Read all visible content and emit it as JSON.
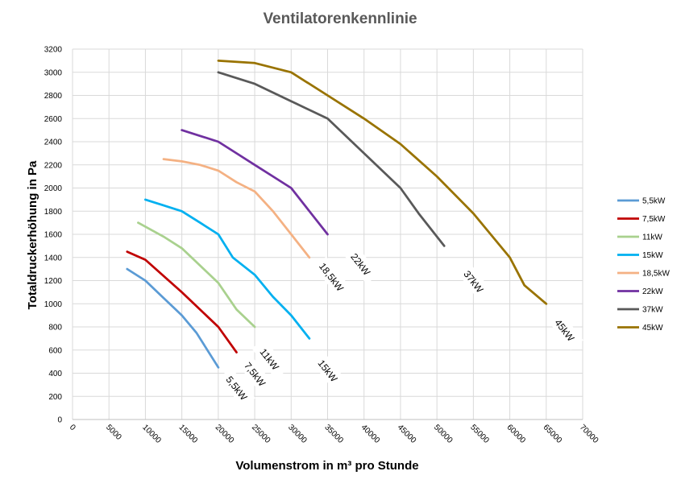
{
  "chart_data": {
    "type": "line",
    "title": "Ventilatorenkennlinie",
    "xlabel": "Volumenstrom in m³ pro Stunde",
    "ylabel": "Totaldruckerhöhung in Pa",
    "xlim": [
      0,
      70000
    ],
    "ylim": [
      0,
      3200
    ],
    "xticks": [
      "0",
      "5000",
      "10000",
      "15000",
      "20000",
      "25000",
      "30000",
      "35000",
      "40000",
      "45000",
      "50000",
      "55000",
      "60000",
      "65000",
      "70000"
    ],
    "yticks": [
      "0",
      "200",
      "400",
      "600",
      "800",
      "1000",
      "1200",
      "1400",
      "1600",
      "1800",
      "2000",
      "2200",
      "2400",
      "2600",
      "2800",
      "3000",
      "3200"
    ],
    "grid": true,
    "legend_position": "right",
    "series": [
      {
        "name": "5,5kW",
        "color": "#5B9BD5",
        "label": "5,5kW",
        "points": [
          [
            7500,
            1300
          ],
          [
            10000,
            1200
          ],
          [
            12500,
            1050
          ],
          [
            15000,
            900
          ],
          [
            17000,
            750
          ],
          [
            20000,
            450
          ]
        ]
      },
      {
        "name": "7,5kW",
        "color": "#C00000",
        "label": "7,5kW",
        "points": [
          [
            7500,
            1450
          ],
          [
            10000,
            1380
          ],
          [
            15000,
            1100
          ],
          [
            20000,
            800
          ],
          [
            22500,
            580
          ]
        ]
      },
      {
        "name": "11kW",
        "color": "#A9D18E",
        "label": "11kW",
        "points": [
          [
            9000,
            1700
          ],
          [
            12500,
            1580
          ],
          [
            15000,
            1480
          ],
          [
            18000,
            1300
          ],
          [
            20000,
            1180
          ],
          [
            22500,
            950
          ],
          [
            25000,
            800
          ]
        ]
      },
      {
        "name": "15kW",
        "color": "#00B0F0",
        "label": "15kW",
        "points": [
          [
            10000,
            1900
          ],
          [
            12500,
            1850
          ],
          [
            15000,
            1800
          ],
          [
            17500,
            1700
          ],
          [
            20000,
            1600
          ],
          [
            22000,
            1400
          ],
          [
            25000,
            1250
          ],
          [
            27500,
            1060
          ],
          [
            30000,
            900
          ],
          [
            32500,
            700
          ]
        ]
      },
      {
        "name": "18,5kW",
        "color": "#F4B183",
        "label": "18,5kW",
        "points": [
          [
            12500,
            2250
          ],
          [
            15000,
            2230
          ],
          [
            17500,
            2200
          ],
          [
            20000,
            2150
          ],
          [
            22500,
            2050
          ],
          [
            25000,
            1970
          ],
          [
            27500,
            1800
          ],
          [
            30000,
            1600
          ],
          [
            32500,
            1400
          ]
        ]
      },
      {
        "name": "22kW",
        "color": "#7030A0",
        "label": "22kW",
        "points": [
          [
            15000,
            2500
          ],
          [
            17500,
            2450
          ],
          [
            20000,
            2400
          ],
          [
            22500,
            2300
          ],
          [
            25000,
            2200
          ],
          [
            27500,
            2100
          ],
          [
            30000,
            2000
          ],
          [
            32500,
            1800
          ],
          [
            35000,
            1600
          ]
        ]
      },
      {
        "name": "37kW",
        "color": "#595959",
        "label": "37kW",
        "points": [
          [
            20000,
            3000
          ],
          [
            25000,
            2900
          ],
          [
            30000,
            2750
          ],
          [
            35000,
            2600
          ],
          [
            40000,
            2300
          ],
          [
            45000,
            2000
          ],
          [
            47500,
            1780
          ],
          [
            51000,
            1500
          ]
        ]
      },
      {
        "name": "45kW",
        "color": "#997300",
        "label": "45kW",
        "points": [
          [
            20000,
            3100
          ],
          [
            25000,
            3080
          ],
          [
            30000,
            3000
          ],
          [
            35000,
            2800
          ],
          [
            40000,
            2600
          ],
          [
            45000,
            2380
          ],
          [
            50000,
            2100
          ],
          [
            55000,
            1780
          ],
          [
            60000,
            1400
          ],
          [
            62000,
            1160
          ],
          [
            65000,
            1000
          ]
        ]
      }
    ]
  }
}
